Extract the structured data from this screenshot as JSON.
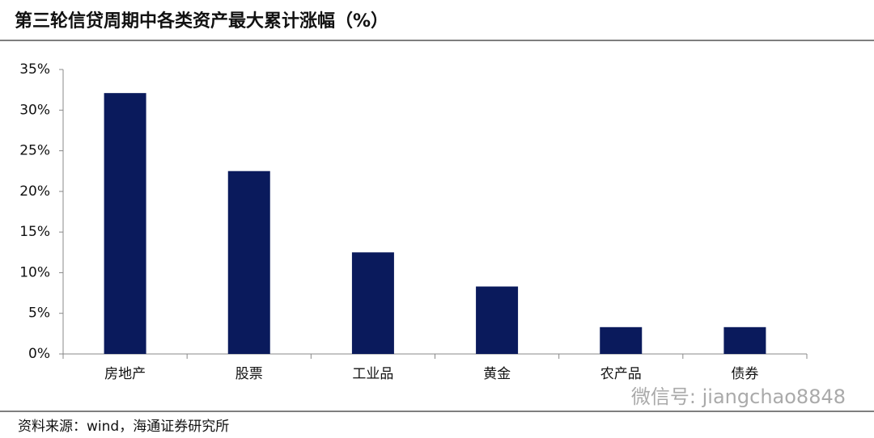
{
  "chart_data": {
    "type": "bar",
    "title": "第三轮信贷周期中各类资产最大累计涨幅（%）",
    "categories": [
      "房地产",
      "股票",
      "工业品",
      "黄金",
      "农产品",
      "债券"
    ],
    "values": [
      32.1,
      22.5,
      12.5,
      8.3,
      3.3,
      3.3
    ],
    "color": "#0a1a5c",
    "ylim": [
      0,
      35
    ],
    "yticks": [
      {
        "value": 0,
        "label": "0%"
      },
      {
        "value": 5,
        "label": "5%"
      },
      {
        "value": 10,
        "label": "10%"
      },
      {
        "value": 15,
        "label": "15%"
      },
      {
        "value": 20,
        "label": "20%"
      },
      {
        "value": 25,
        "label": "25%"
      },
      {
        "value": 30,
        "label": "30%"
      },
      {
        "value": 35,
        "label": "35%"
      }
    ],
    "source": "资料来源：wind，海通证券研究所",
    "watermark": "微信号: jiangchao8848"
  }
}
